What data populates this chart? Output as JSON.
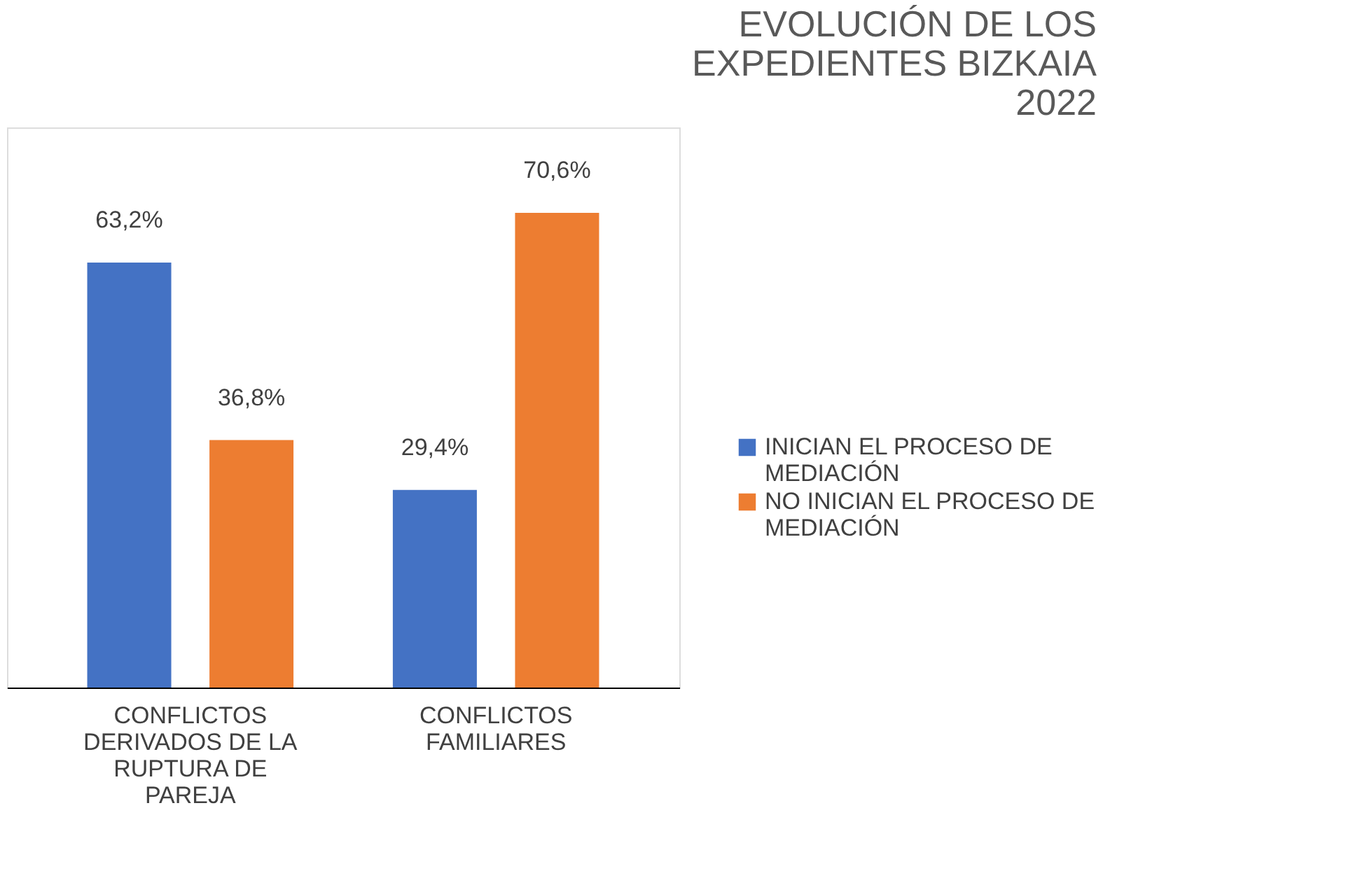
{
  "chart_data": {
    "type": "bar",
    "title": "EVOLUCIÓN DE LOS EXPEDIENTES BIZKAIA 2022",
    "categories": [
      "CONFLICTOS DERIVADOS DE LA RUPTURA DE PAREJA",
      "CONFLICTOS FAMILIARES"
    ],
    "series": [
      {
        "name": "INICIAN EL PROCESO DE MEDIACIÓN",
        "color": "#4472c4",
        "values": [
          63.2,
          29.4
        ],
        "value_labels": [
          "63,2%",
          "29,4%"
        ]
      },
      {
        "name": "NO INICIAN EL PROCESO DE MEDIACIÓN",
        "color": "#ed7d31",
        "values": [
          36.8,
          70.6
        ],
        "value_labels": [
          "36,8%",
          "70,6%"
        ]
      }
    ],
    "legend": "right",
    "grid": false
  }
}
